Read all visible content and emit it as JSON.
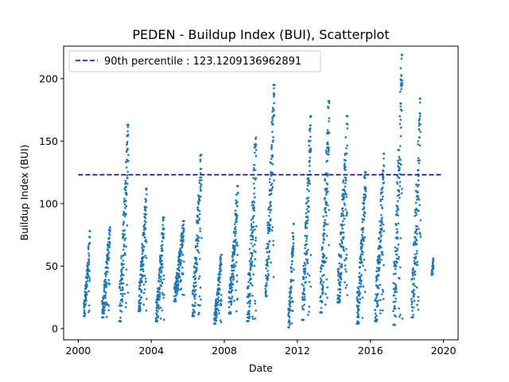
{
  "chart_data": {
    "type": "scatter",
    "title": "PEDEN - Buildup Index (BUI), Scatterplot",
    "xlabel": "Date",
    "ylabel": "Buildup Index (BUI)",
    "xlim": [
      1999.2,
      2020.8
    ],
    "ylim": [
      -9,
      226
    ],
    "xticks": [
      2000,
      2004,
      2008,
      2012,
      2016,
      2020
    ],
    "yticks": [
      0,
      50,
      100,
      150,
      200
    ],
    "point_color": "#1f77b4",
    "legend": {
      "placement": "top-left",
      "entries": [
        {
          "label": "90th percentile : 123.1209136962891",
          "color": "#0000aa",
          "style": "dashed"
        }
      ]
    },
    "reference_line": {
      "y": 123.1209136962891,
      "x_start": 2000.0,
      "x_end": 2019.9,
      "color": "#0000aa"
    },
    "season_ranges": [
      {
        "start": 2000.3,
        "end": 2000.65,
        "min": 10,
        "max": 78
      },
      {
        "start": 2001.3,
        "end": 2001.75,
        "min": 9,
        "max": 81
      },
      {
        "start": 2002.25,
        "end": 2002.75,
        "min": 6,
        "max": 163
      },
      {
        "start": 2003.3,
        "end": 2003.75,
        "min": 14,
        "max": 112
      },
      {
        "start": 2004.25,
        "end": 2004.7,
        "min": 6,
        "max": 89
      },
      {
        "start": 2005.25,
        "end": 2005.8,
        "min": 22,
        "max": 86
      },
      {
        "start": 2006.25,
        "end": 2006.75,
        "min": 10,
        "max": 139
      },
      {
        "start": 2007.45,
        "end": 2007.85,
        "min": 4,
        "max": 59
      },
      {
        "start": 2008.25,
        "end": 2008.75,
        "min": 12,
        "max": 114
      },
      {
        "start": 2009.25,
        "end": 2009.75,
        "min": 6,
        "max": 153
      },
      {
        "start": 2010.25,
        "end": 2010.75,
        "min": 26,
        "max": 195
      },
      {
        "start": 2011.5,
        "end": 2011.8,
        "min": 1,
        "max": 84
      },
      {
        "start": 2012.25,
        "end": 2012.75,
        "min": 7,
        "max": 170
      },
      {
        "start": 2013.25,
        "end": 2013.75,
        "min": 13,
        "max": 182
      },
      {
        "start": 2014.2,
        "end": 2014.75,
        "min": 21,
        "max": 170
      },
      {
        "start": 2015.25,
        "end": 2015.75,
        "min": 4,
        "max": 125
      },
      {
        "start": 2016.25,
        "end": 2016.75,
        "min": 6,
        "max": 140
      },
      {
        "start": 2017.25,
        "end": 2017.75,
        "min": 3,
        "max": 219
      },
      {
        "start": 2018.25,
        "end": 2018.75,
        "min": 9,
        "max": 184
      },
      {
        "start": 2019.35,
        "end": 2019.45,
        "min": 43,
        "max": 57
      }
    ]
  }
}
